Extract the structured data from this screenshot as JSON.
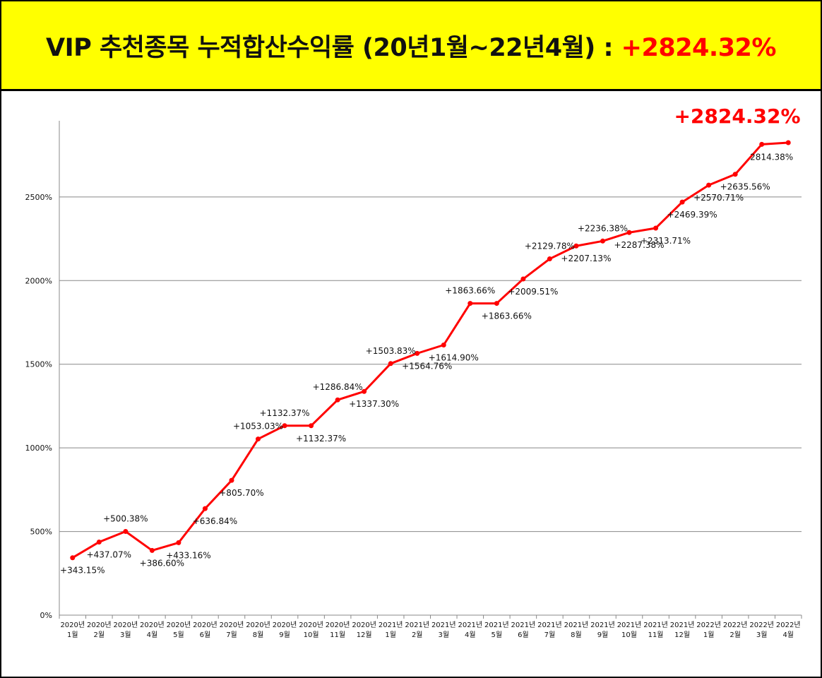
{
  "banner": {
    "title": "VIP 추천종목 누적합산수익률 (20년1월~22년4월) : ",
    "total": "+2824.32%"
  },
  "chart_data": {
    "type": "line",
    "title": "VIP 추천종목 누적합산수익률 (20년1월~22년4월) : +2824.32%",
    "xlabel": "",
    "ylabel": "",
    "ylim": [
      0,
      2900
    ],
    "yticks": [
      0,
      500,
      1000,
      1500,
      2000,
      2500
    ],
    "ytick_labels": [
      "0%",
      "500%",
      "1000%",
      "1500%",
      "2000%",
      "2500%"
    ],
    "grid": true,
    "colors": {
      "line": "#ff0000",
      "grid": "#888888",
      "highlight": "#ff0000"
    },
    "highlight_label": "+2824.32%",
    "categories": [
      [
        "2020년",
        "1월"
      ],
      [
        "2020년",
        "2월"
      ],
      [
        "2020년",
        "3월"
      ],
      [
        "2020년",
        "4월"
      ],
      [
        "2020년",
        "5월"
      ],
      [
        "2020년",
        "6월"
      ],
      [
        "2020년",
        "7월"
      ],
      [
        "2020년",
        "8월"
      ],
      [
        "2020년",
        "9월"
      ],
      [
        "2020년",
        "10월"
      ],
      [
        "2020년",
        "11월"
      ],
      [
        "2020년",
        "12월"
      ],
      [
        "2021년",
        "1월"
      ],
      [
        "2021년",
        "2월"
      ],
      [
        "2021년",
        "3월"
      ],
      [
        "2021년",
        "4월"
      ],
      [
        "2021년",
        "5월"
      ],
      [
        "2021년",
        "6월"
      ],
      [
        "2021년",
        "7월"
      ],
      [
        "2021년",
        "8월"
      ],
      [
        "2021년",
        "9월"
      ],
      [
        "2021년",
        "10월"
      ],
      [
        "2021년",
        "11월"
      ],
      [
        "2021년",
        "12월"
      ],
      [
        "2022년",
        "1월"
      ],
      [
        "2022년",
        "2월"
      ],
      [
        "2022년",
        "3월"
      ],
      [
        "2022년",
        "4월"
      ]
    ],
    "values": [
      343.15,
      437.07,
      500.38,
      386.6,
      433.16,
      636.84,
      805.7,
      1053.03,
      1132.37,
      1132.37,
      1286.84,
      1337.3,
      1503.83,
      1564.76,
      1614.9,
      1863.66,
      1863.66,
      2009.51,
      2129.78,
      2207.13,
      2236.38,
      2287.38,
      2313.71,
      2469.39,
      2570.71,
      2635.56,
      2814.38,
      2824.32
    ],
    "data_labels": [
      "+343.15%",
      "+437.07%",
      "+500.38%",
      "+386.60%",
      "+433.16%",
      "+636.84%",
      "+805.70%",
      "+1053.03%",
      "+1132.37%",
      "+1132.37%",
      "+1286.84%",
      "+1337.30%",
      "+1503.83%",
      "+1564.76%",
      "+1614.90%",
      "+1863.66%",
      "+1863.66%",
      "+2009.51%",
      "+2129.78%",
      "+2207.13%",
      "+2236.38%",
      "+2287.38%",
      "+2313.71%",
      "+2469.39%",
      "+2570.71%",
      "+2635.56%",
      "2814.38%",
      ""
    ],
    "label_positions": [
      "below",
      "below",
      "above",
      "below",
      "below",
      "below",
      "below",
      "above",
      "above",
      "below",
      "above",
      "below",
      "above",
      "below",
      "below",
      "above",
      "below",
      "below",
      "above",
      "below",
      "above",
      "below",
      "below",
      "below",
      "below",
      "below",
      "below",
      "none"
    ]
  }
}
